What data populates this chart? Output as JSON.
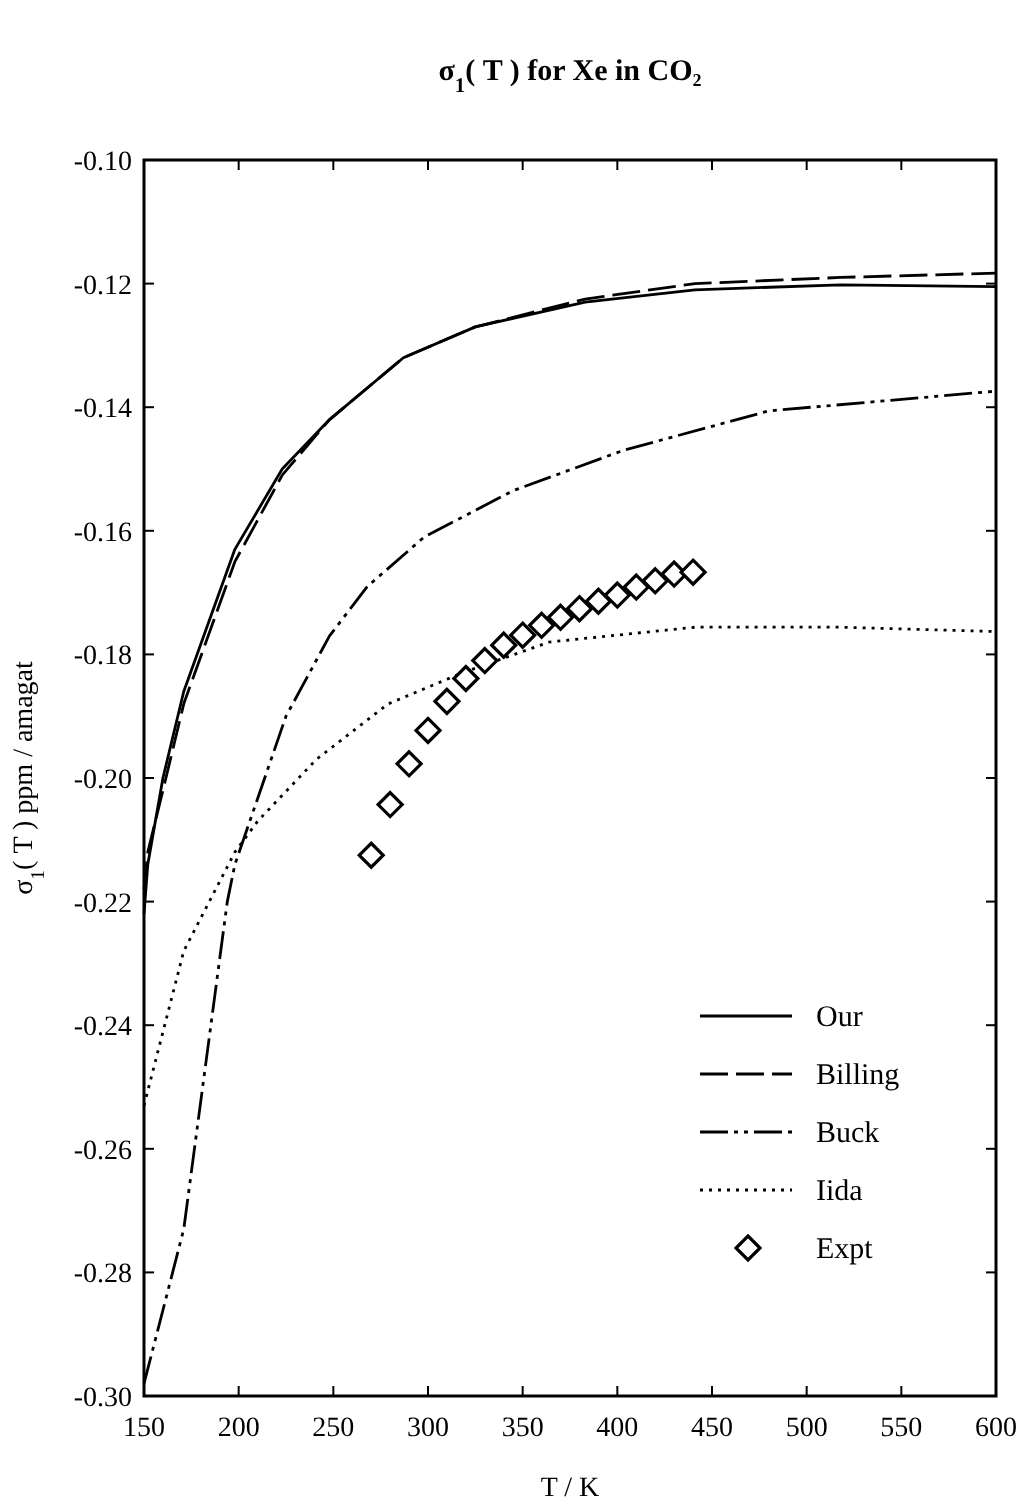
{
  "chart_data": {
    "type": "line",
    "title": "σ$_{1}$( T )  for Xe in CO₂",
    "xlabel": "T / K",
    "ylabel": "σ$_{1}$( T ) ppm / amagat",
    "xlim": [
      150,
      600
    ],
    "xticks": [
      150,
      200,
      250,
      300,
      350,
      400,
      450,
      500,
      550,
      600
    ],
    "ylim": [
      -0.3,
      -0.1
    ],
    "yticks": [
      {
        "value": -0.3,
        "label": "-0.30"
      },
      {
        "value": -0.28,
        "label": "-0.28"
      },
      {
        "value": -0.26,
        "label": "-0.26"
      },
      {
        "value": -0.24,
        "label": "-0.24"
      },
      {
        "value": -0.22,
        "label": "-0.22"
      },
      {
        "value": -0.2,
        "label": "-0.20"
      },
      {
        "value": -0.18,
        "label": "-0.18"
      },
      {
        "value": -0.16,
        "label": "-0.16"
      },
      {
        "value": -0.14,
        "label": "-0.14"
      },
      {
        "value": -0.12,
        "label": "-0.12"
      },
      {
        "value": -0.1,
        "label": "-0.10"
      }
    ],
    "grid": false,
    "legend": "bottom right",
    "series": [
      {
        "name": "Our",
        "color": "#000000",
        "line_style": "solid",
        "marker": "none",
        "x": [
          150,
          152,
          160,
          171,
          198,
          223,
          248,
          287,
          325,
          383,
          441,
          518,
          600
        ],
        "values": [
          -0.222,
          -0.214,
          -0.2,
          -0.186,
          -0.163,
          -0.15,
          -0.142,
          -0.132,
          -0.127,
          -0.123,
          -0.121,
          -0.1202,
          -0.1205
        ]
      },
      {
        "name": "Billing",
        "color": "#000000",
        "line_style": "dashed",
        "marker": "none",
        "x": [
          150,
          152,
          160,
          171,
          198,
          223,
          248,
          287,
          325,
          383,
          441,
          518,
          600
        ],
        "values": [
          -0.218,
          -0.212,
          -0.202,
          -0.188,
          -0.165,
          -0.151,
          -0.142,
          -0.132,
          -0.127,
          -0.1225,
          -0.12,
          -0.119,
          -0.1183
        ]
      },
      {
        "name": "Buck",
        "color": "#000000",
        "line_style": "dashdotdot",
        "marker": "none",
        "x": [
          150,
          171,
          194,
          198,
          225,
          248,
          268,
          298,
          345,
          403,
          480,
          600
        ],
        "values": [
          -0.298,
          -0.273,
          -0.22,
          -0.214,
          -0.19,
          -0.177,
          -0.169,
          -0.161,
          -0.1535,
          -0.147,
          -0.1406,
          -0.1374
        ]
      },
      {
        "name": "Iida",
        "color": "#000000",
        "line_style": "dotted",
        "marker": "none",
        "x": [
          150,
          171,
          198,
          210,
          241,
          279,
          318,
          364,
          441,
          518,
          600
        ],
        "values": [
          -0.253,
          -0.228,
          -0.212,
          -0.207,
          -0.197,
          -0.188,
          -0.183,
          -0.178,
          -0.1756,
          -0.1756,
          -0.1763
        ]
      },
      {
        "name": "Expt",
        "type": "scatter",
        "color": "#000000",
        "marker": "diamond",
        "x": [
          270,
          280,
          290,
          300,
          310,
          320,
          330,
          340,
          350,
          360,
          370,
          380,
          390,
          400,
          410,
          420,
          430,
          440
        ],
        "values": [
          -0.2125,
          -0.2043,
          -0.1977,
          -0.1923,
          -0.1876,
          -0.1839,
          -0.181,
          -0.1785,
          -0.1769,
          -0.1753,
          -0.174,
          -0.1726,
          -0.1714,
          -0.1704,
          -0.1691,
          -0.1681,
          -0.167,
          -0.1667
        ]
      }
    ]
  }
}
